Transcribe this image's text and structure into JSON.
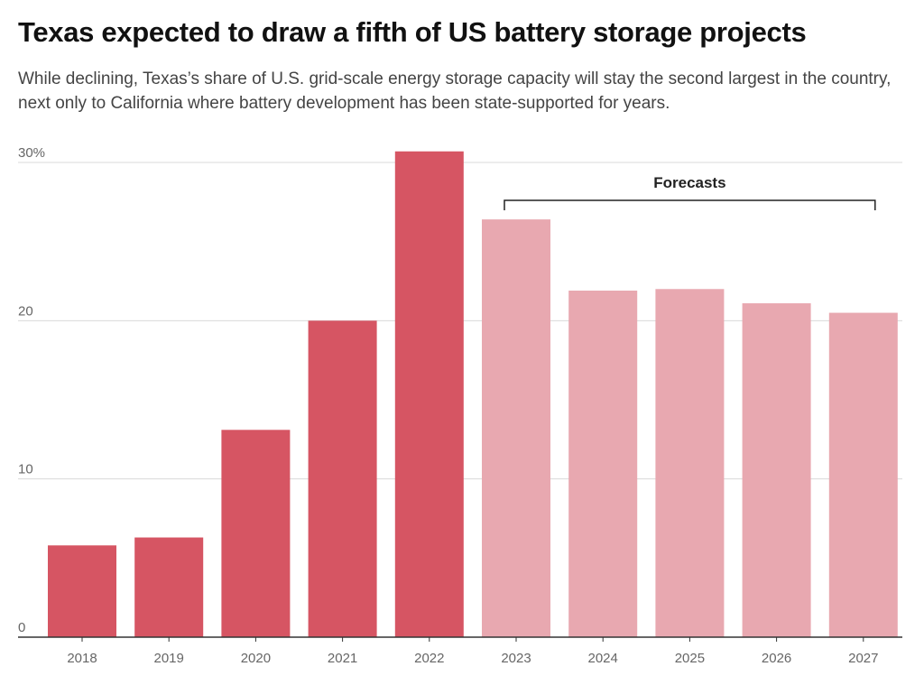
{
  "title": "Texas expected to draw a fifth of US battery storage projects",
  "subtitle": "While declining, Texas’s share of U.S. grid-scale energy storage capacity will stay the second largest in the country, next only to California where battery development has been state-supported for years.",
  "chart_data": {
    "type": "bar",
    "categories": [
      "2018",
      "2019",
      "2020",
      "2021",
      "2022",
      "2023",
      "2024",
      "2025",
      "2026",
      "2027"
    ],
    "values": [
      5.8,
      6.3,
      13.1,
      20.0,
      30.7,
      26.4,
      21.9,
      22.0,
      21.1,
      20.5
    ],
    "forecast_from_index": 5,
    "forecast_label": "Forecasts",
    "ylim": [
      0,
      30
    ],
    "yticks": [
      0,
      10,
      20,
      30
    ],
    "ytick_labels": [
      "0",
      "10",
      "20",
      "30%"
    ],
    "grid": true,
    "colors": {
      "actual": "#d65563",
      "forecast": "#e8a8b0",
      "grid": "#d9d9d9",
      "axis": "#333333"
    }
  }
}
